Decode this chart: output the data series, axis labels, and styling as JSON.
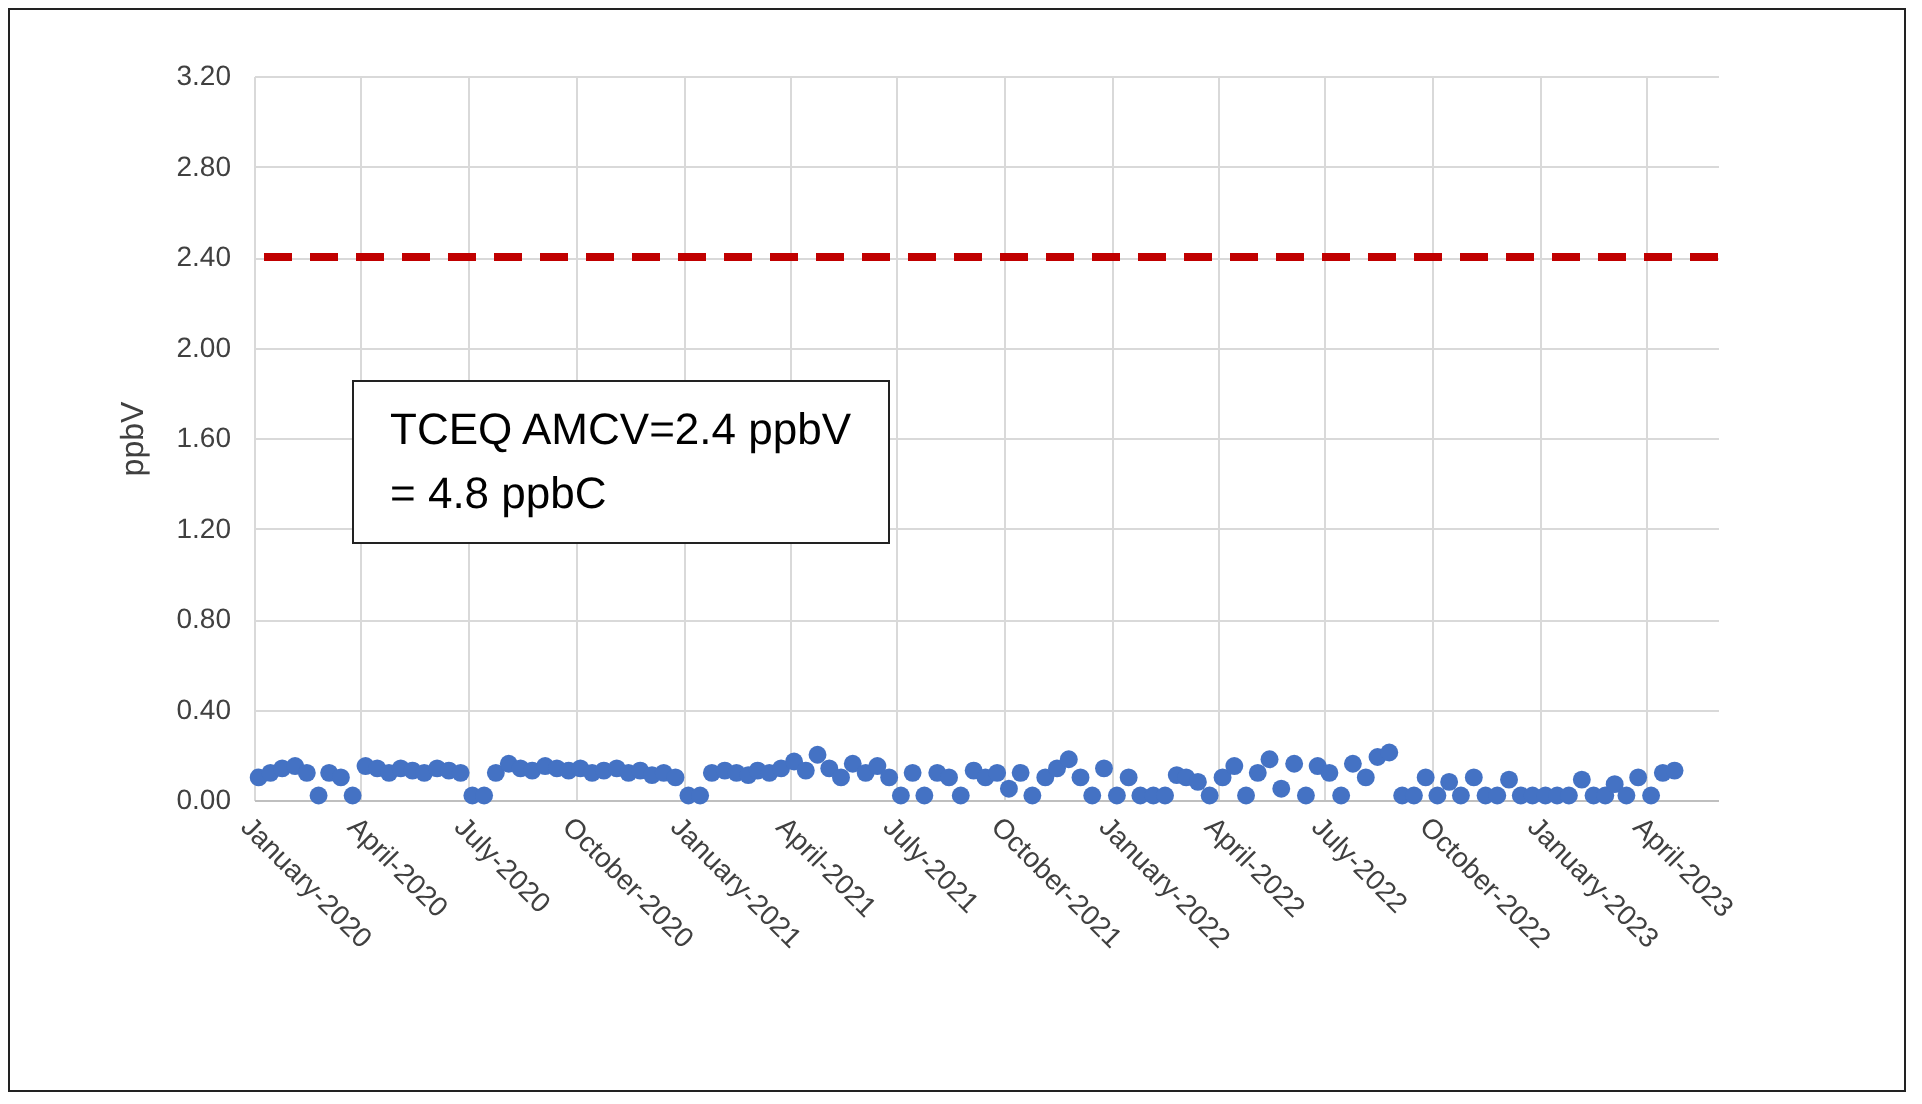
{
  "chart_data": {
    "type": "scatter",
    "ylabel": "ppbV",
    "annotations": [
      "TCEQ AMCV=2.4 ppbV\n= 4.8 ppbC"
    ],
    "x": [
      "2020-01-05",
      "2020-01-15",
      "2020-01-25",
      "2020-02-05",
      "2020-02-15",
      "2020-02-25",
      "2020-03-05",
      "2020-03-15",
      "2020-03-25",
      "2020-04-05",
      "2020-04-15",
      "2020-04-25",
      "2020-05-05",
      "2020-05-15",
      "2020-05-25",
      "2020-06-05",
      "2020-06-15",
      "2020-06-25",
      "2020-07-05",
      "2020-07-15",
      "2020-07-25",
      "2020-08-05",
      "2020-08-15",
      "2020-08-25",
      "2020-09-05",
      "2020-09-15",
      "2020-09-25",
      "2020-10-05",
      "2020-10-15",
      "2020-10-25",
      "2020-11-05",
      "2020-11-15",
      "2020-11-25",
      "2020-12-05",
      "2020-12-15",
      "2020-12-25",
      "2021-01-05",
      "2021-01-15",
      "2021-01-25",
      "2021-02-05",
      "2021-02-15",
      "2021-02-25",
      "2021-03-05",
      "2021-03-15",
      "2021-03-25",
      "2021-04-05",
      "2021-04-15",
      "2021-04-25",
      "2021-05-05",
      "2021-05-15",
      "2021-05-25",
      "2021-06-05",
      "2021-06-15",
      "2021-06-25",
      "2021-07-05",
      "2021-07-15",
      "2021-07-25",
      "2021-08-05",
      "2021-08-15",
      "2021-08-25",
      "2021-09-05",
      "2021-09-15",
      "2021-09-25",
      "2021-10-05",
      "2021-10-15",
      "2021-10-25",
      "2021-11-05",
      "2021-11-15",
      "2021-11-25",
      "2021-12-05",
      "2021-12-15",
      "2021-12-25",
      "2022-01-05",
      "2022-01-15",
      "2022-01-25",
      "2022-02-05",
      "2022-02-15",
      "2022-02-25",
      "2022-03-05",
      "2022-03-15",
      "2022-03-25",
      "2022-04-05",
      "2022-04-15",
      "2022-04-25",
      "2022-05-05",
      "2022-05-15",
      "2022-05-25",
      "2022-06-05",
      "2022-06-15",
      "2022-06-25",
      "2022-07-05",
      "2022-07-15",
      "2022-07-25",
      "2022-08-05",
      "2022-08-15",
      "2022-08-25",
      "2022-09-05",
      "2022-09-15",
      "2022-09-25",
      "2022-10-05",
      "2022-10-15",
      "2022-10-25",
      "2022-11-05",
      "2022-11-15",
      "2022-11-25",
      "2022-12-05",
      "2022-12-15",
      "2022-12-25",
      "2023-01-05",
      "2023-01-15",
      "2023-01-25",
      "2023-02-05",
      "2023-02-15",
      "2023-02-25",
      "2023-03-05",
      "2023-03-15",
      "2023-03-25",
      "2023-04-05",
      "2023-04-15",
      "2023-04-25"
    ],
    "series": [
      {
        "color": "#4472c4",
        "values": [
          0.1,
          0.12,
          0.14,
          0.15,
          0.12,
          0.02,
          0.12,
          0.1,
          0.02,
          0.15,
          0.14,
          0.12,
          0.14,
          0.13,
          0.12,
          0.14,
          0.13,
          0.12,
          0.02,
          0.02,
          0.12,
          0.16,
          0.14,
          0.13,
          0.15,
          0.14,
          0.13,
          0.14,
          0.12,
          0.13,
          0.14,
          0.12,
          0.13,
          0.11,
          0.12,
          0.1,
          0.02,
          0.02,
          0.12,
          0.13,
          0.12,
          0.11,
          0.13,
          0.12,
          0.14,
          0.17,
          0.13,
          0.2,
          0.14,
          0.1,
          0.16,
          0.12,
          0.15,
          0.1,
          0.02,
          0.12,
          0.02,
          0.12,
          0.1,
          0.02,
          0.13,
          0.1,
          0.12,
          0.05,
          0.12,
          0.02,
          0.1,
          0.14,
          0.18,
          0.1,
          0.02,
          0.14,
          0.02,
          0.1,
          0.02,
          0.02,
          0.02,
          0.11,
          0.1,
          0.08,
          0.02,
          0.1,
          0.15,
          0.02,
          0.12,
          0.18,
          0.05,
          0.16,
          0.02,
          0.15,
          0.12,
          0.02,
          0.16,
          0.1,
          0.19,
          0.21,
          0.02,
          0.02,
          0.1,
          0.02,
          0.08,
          0.02,
          0.1,
          0.02,
          0.02,
          0.09,
          0.02,
          0.02,
          0.02,
          0.02,
          0.02,
          0.09,
          0.02,
          0.02,
          0.07,
          0.02,
          0.1,
          0.02,
          0.12,
          0.13
        ]
      }
    ],
    "xlim": [
      "2020-01-01",
      "2023-06-01"
    ],
    "xticks": [
      {
        "value": "2020-01-01",
        "label": "January-2020"
      },
      {
        "value": "2020-04-01",
        "label": "April-2020"
      },
      {
        "value": "2020-07-01",
        "label": "July-2020"
      },
      {
        "value": "2020-10-01",
        "label": "October-2020"
      },
      {
        "value": "2021-01-01",
        "label": "January-2021"
      },
      {
        "value": "2021-04-01",
        "label": "April-2021"
      },
      {
        "value": "2021-07-01",
        "label": "July-2021"
      },
      {
        "value": "2021-10-01",
        "label": "October-2021"
      },
      {
        "value": "2022-01-01",
        "label": "January-2022"
      },
      {
        "value": "2022-04-01",
        "label": "April-2022"
      },
      {
        "value": "2022-07-01",
        "label": "July-2022"
      },
      {
        "value": "2022-10-01",
        "label": "October-2022"
      },
      {
        "value": "2023-01-01",
        "label": "January-2023"
      },
      {
        "value": "2023-04-01",
        "label": "April-2023"
      }
    ],
    "ylim": [
      0,
      3.2
    ],
    "yticks": [
      {
        "value": 0,
        "label": "0.00"
      },
      {
        "value": 0.4,
        "label": "0.40"
      },
      {
        "value": 0.8,
        "label": "0.80"
      },
      {
        "value": 1.2,
        "label": "1.20"
      },
      {
        "value": 1.6,
        "label": "1.60"
      },
      {
        "value": 2.0,
        "label": "2.00"
      },
      {
        "value": 2.4,
        "label": "2.40"
      },
      {
        "value": 2.8,
        "label": "2.80"
      },
      {
        "value": 3.2,
        "label": "3.20"
      }
    ],
    "ref_lines": [
      {
        "axis": "y",
        "value": 2.4,
        "color": "#c00000",
        "line_style": "dashed"
      }
    ],
    "grid": true,
    "marker": "circle"
  }
}
